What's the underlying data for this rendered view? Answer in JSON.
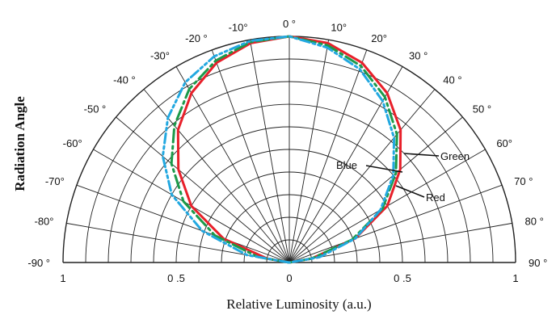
{
  "chart_data": {
    "type": "polar-line",
    "title": "",
    "ylabel": "Radiation  Angle",
    "xlabel": "Relative Luminosity (a.u.)",
    "angle_labels": [
      {
        "text": "0 °",
        "angle": 0
      },
      {
        "text": "10°",
        "angle": 10
      },
      {
        "text": "20°",
        "angle": 20
      },
      {
        "text": "30 °",
        "angle": 30
      },
      {
        "text": "40 °",
        "angle": 40
      },
      {
        "text": "50 °",
        "angle": 50
      },
      {
        "text": "60°",
        "angle": 60
      },
      {
        "text": "70 °",
        "angle": 70
      },
      {
        "text": "80 °",
        "angle": 80
      },
      {
        "text": "90 °",
        "angle": 90
      },
      {
        "text": "-10°",
        "angle": -10
      },
      {
        "text": "-20 °",
        "angle": -20
      },
      {
        "text": "-30°",
        "angle": -30
      },
      {
        "text": "-40 °",
        "angle": -40
      },
      {
        "text": "-50 °",
        "angle": -50
      },
      {
        "text": "-60°",
        "angle": -60
      },
      {
        "text": "-70°",
        "angle": -70
      },
      {
        "text": "-80°",
        "angle": -80
      },
      {
        "text": "-90 °",
        "angle": -90
      }
    ],
    "radial_ticks": [
      {
        "text": "1",
        "value": -1
      },
      {
        "text": "0 .5",
        "value": -0.5
      },
      {
        "text": "0",
        "value": 0
      },
      {
        "text": "0 .5",
        "value": 0.5
      },
      {
        "text": "1",
        "value": 1
      }
    ],
    "rlim": [
      0,
      1
    ],
    "angle_range": [
      -90,
      90
    ],
    "grid": true,
    "series": [
      {
        "name": "Red",
        "color": "#e8202a",
        "style": "solid",
        "points": [
          [
            -90,
            0
          ],
          [
            -80,
            0.1
          ],
          [
            -70,
            0.31
          ],
          [
            -60,
            0.5
          ],
          [
            -50,
            0.64
          ],
          [
            -40,
            0.765
          ],
          [
            -30,
            0.865
          ],
          [
            -20,
            0.94
          ],
          [
            -10,
            0.985
          ],
          [
            0,
            1
          ],
          [
            10,
            0.985
          ],
          [
            20,
            0.94
          ],
          [
            30,
            0.865
          ],
          [
            40,
            0.765
          ],
          [
            50,
            0.64
          ],
          [
            60,
            0.5
          ],
          [
            70,
            0.31
          ],
          [
            80,
            0.1
          ],
          [
            90,
            0
          ]
        ]
      },
      {
        "name": "Green",
        "color": "#1c9a4a",
        "style": "dash-dot",
        "points": [
          [
            -90,
            0
          ],
          [
            -80,
            0.14
          ],
          [
            -70,
            0.35
          ],
          [
            -60,
            0.54
          ],
          [
            -50,
            0.68
          ],
          [
            -40,
            0.79
          ],
          [
            -30,
            0.885
          ],
          [
            -20,
            0.95
          ],
          [
            -10,
            0.99
          ],
          [
            0,
            1
          ],
          [
            10,
            0.975
          ],
          [
            20,
            0.925
          ],
          [
            30,
            0.845
          ],
          [
            40,
            0.74
          ],
          [
            50,
            0.615
          ],
          [
            60,
            0.475
          ],
          [
            70,
            0.295
          ],
          [
            80,
            0.1
          ],
          [
            90,
            0
          ]
        ]
      },
      {
        "name": "Blue",
        "color": "#22a8e0",
        "style": "dash-dot-dot",
        "points": [
          [
            -90,
            0
          ],
          [
            -80,
            0.19
          ],
          [
            -70,
            0.41
          ],
          [
            -60,
            0.6
          ],
          [
            -50,
            0.73
          ],
          [
            -40,
            0.835
          ],
          [
            -30,
            0.92
          ],
          [
            -20,
            0.97
          ],
          [
            -10,
            0.995
          ],
          [
            0,
            1
          ],
          [
            10,
            0.965
          ],
          [
            20,
            0.91
          ],
          [
            30,
            0.825
          ],
          [
            40,
            0.72
          ],
          [
            50,
            0.6
          ],
          [
            60,
            0.465
          ],
          [
            70,
            0.31
          ],
          [
            80,
            0.135
          ],
          [
            90,
            0
          ]
        ]
      }
    ],
    "annotations": [
      {
        "text": "Blue",
        "series": "Blue"
      },
      {
        "text": "Green",
        "series": "Green"
      },
      {
        "text": "Red",
        "series": "Red"
      }
    ]
  }
}
